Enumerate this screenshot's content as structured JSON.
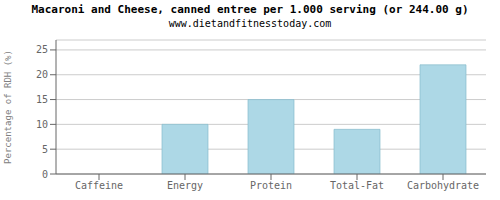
{
  "chart_data": {
    "type": "bar",
    "title": "Macaroni and Cheese, canned entree per 1.000 serving (or 244.00 g)",
    "subtitle": "www.dietandfitnesstoday.com",
    "categories": [
      "Caffeine",
      "Energy",
      "Protein",
      "Total-Fat",
      "Carbohydrate"
    ],
    "values": [
      0,
      10,
      15,
      9,
      22
    ],
    "color": "#add8e6",
    "ylabel": "Percentage of RDH (%)",
    "ylim": [
      0,
      27
    ],
    "yticks": [
      0,
      5,
      10,
      15,
      20,
      25
    ],
    "grid": true
  }
}
